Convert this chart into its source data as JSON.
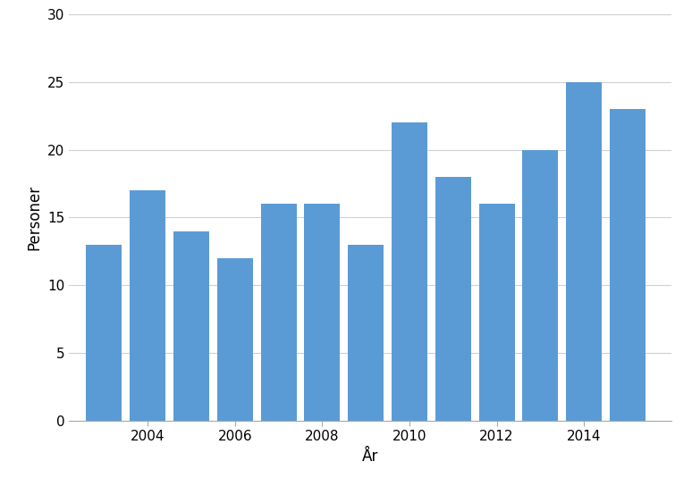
{
  "years": [
    2003,
    2004,
    2005,
    2006,
    2007,
    2008,
    2009,
    2010,
    2011,
    2012,
    2013,
    2014,
    2015
  ],
  "values": [
    13,
    17,
    14,
    12,
    16,
    16,
    13,
    22,
    18,
    16,
    20,
    25,
    23
  ],
  "bar_color": "#5B9BD5",
  "xlabel": "År",
  "ylabel": "Personer",
  "ylim": [
    0,
    30
  ],
  "yticks": [
    0,
    5,
    10,
    15,
    20,
    25,
    30
  ],
  "xtick_labels": [
    "2004",
    "2006",
    "2008",
    "2010",
    "2012",
    "2014"
  ],
  "xtick_positions": [
    2004,
    2006,
    2008,
    2010,
    2012,
    2014
  ],
  "xlim": [
    2002.2,
    2016.0
  ],
  "bar_width": 0.82,
  "background_color": "#ffffff",
  "grid_color": "#d0d0d0",
  "xlabel_fontsize": 12,
  "ylabel_fontsize": 12,
  "tick_fontsize": 11,
  "spine_color": "#aaaaaa"
}
